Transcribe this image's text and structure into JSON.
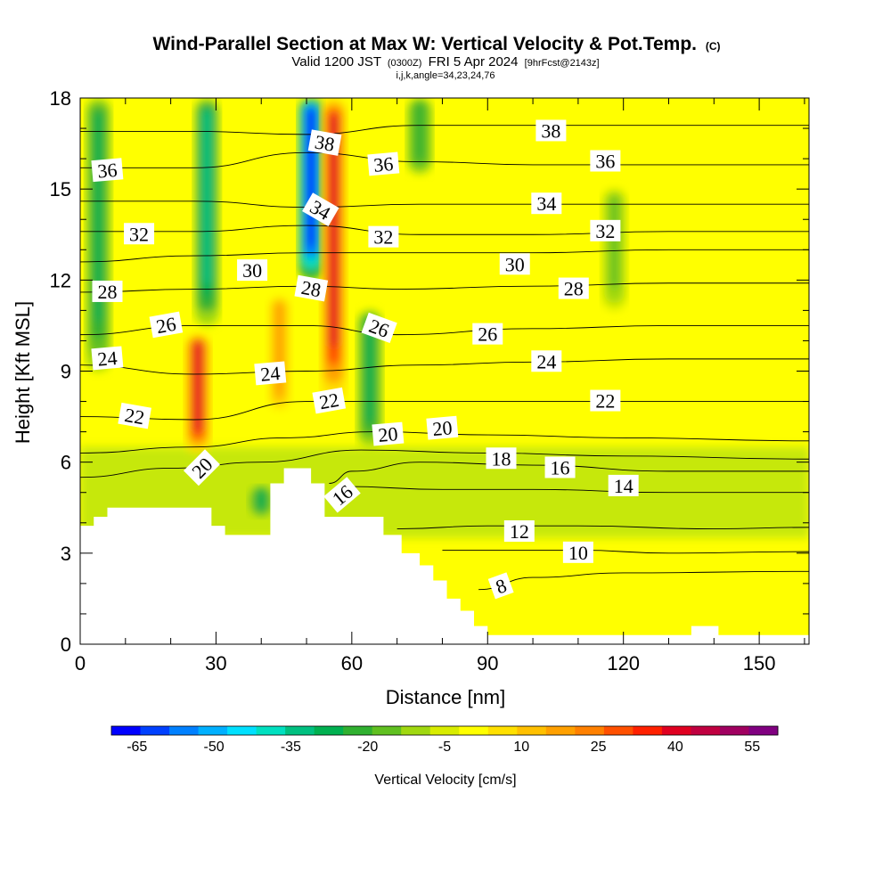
{
  "chart_data": {
    "type": "heatmap",
    "title": {
      "main": "Wind-Parallel Section at Max W: Vertical Velocity & Pot.Temp.",
      "main_suffix": "(C)",
      "valid_prefix": "Valid 1200 JST",
      "valid_utc": "(0300Z)",
      "valid_date": "FRI 5 Apr 2024",
      "forecast": "[9hrFcst@2143z]",
      "indices": "i,j,k,angle=34,23,24,76"
    },
    "xlabel": "Distance [nm]",
    "ylabel": "Height [Kft MSL]",
    "xlim": [
      0,
      161
    ],
    "ylim": [
      0,
      18
    ],
    "x_ticks": [
      0,
      30,
      60,
      90,
      120,
      150
    ],
    "y_ticks": [
      0,
      3,
      6,
      9,
      12,
      15,
      18
    ],
    "colorbar": {
      "label": "Vertical Velocity [cm/s]",
      "tick_labels": [
        "-65",
        "-50",
        "-35",
        "-20",
        "-5",
        "10",
        "25",
        "40",
        "55"
      ],
      "colors": [
        "#0000ff",
        "#0040ff",
        "#0080ff",
        "#00b0ff",
        "#00e0ff",
        "#00e0c0",
        "#00c080",
        "#00b050",
        "#30b030",
        "#60c020",
        "#a0d810",
        "#d8ec00",
        "#ffff00",
        "#ffe000",
        "#ffc000",
        "#ffa000",
        "#ff8000",
        "#ff5000",
        "#ff2000",
        "#e00020",
        "#c00040",
        "#a00060",
        "#800080"
      ]
    },
    "updraft_bands": [
      {
        "x": 26,
        "bottom": 6.3,
        "top": 10.2,
        "peak_cm_s": 45
      },
      {
        "x": 56,
        "bottom": 8.0,
        "top": 18.0,
        "peak_cm_s": 45
      },
      {
        "x": 44,
        "bottom": 7.5,
        "top": 11.5,
        "peak_cm_s": 20
      }
    ],
    "downdraft_bands": [
      {
        "x": 4,
        "bottom": 9.0,
        "top": 18.0,
        "peak_cm_s": -25
      },
      {
        "x": 28,
        "bottom": 10.5,
        "top": 18.0,
        "peak_cm_s": -30
      },
      {
        "x": 51,
        "bottom": 12.0,
        "top": 18.0,
        "peak_cm_s": -65
      },
      {
        "x": 64,
        "bottom": 6.5,
        "top": 11.0,
        "peak_cm_s": -22
      },
      {
        "x": 75,
        "bottom": 15.5,
        "top": 18.0,
        "peak_cm_s": -18
      },
      {
        "x": 40,
        "bottom": 4.2,
        "top": 5.2,
        "peak_cm_s": -20
      },
      {
        "x": 118,
        "bottom": 11.0,
        "top": 15.0,
        "peak_cm_s": -10
      }
    ],
    "terrain": [
      [
        0,
        3.9
      ],
      [
        3,
        3.9
      ],
      [
        3,
        4.2
      ],
      [
        6,
        4.2
      ],
      [
        6,
        4.5
      ],
      [
        29,
        4.5
      ],
      [
        29,
        3.9
      ],
      [
        32,
        3.9
      ],
      [
        32,
        3.6
      ],
      [
        42,
        3.6
      ],
      [
        42,
        5.3
      ],
      [
        45,
        5.3
      ],
      [
        45,
        5.8
      ],
      [
        51,
        5.8
      ],
      [
        51,
        5.3
      ],
      [
        54,
        5.3
      ],
      [
        54,
        4.2
      ],
      [
        67,
        4.2
      ],
      [
        67,
        3.6
      ],
      [
        71,
        3.6
      ],
      [
        71,
        3.0
      ],
      [
        75,
        3.0
      ],
      [
        75,
        2.6
      ],
      [
        78,
        2.6
      ],
      [
        78,
        2.1
      ],
      [
        81,
        2.1
      ],
      [
        81,
        1.5
      ],
      [
        84,
        1.5
      ],
      [
        84,
        1.1
      ],
      [
        87,
        1.1
      ],
      [
        87,
        0.6
      ],
      [
        90,
        0.6
      ],
      [
        90,
        0.3
      ],
      [
        135,
        0.3
      ],
      [
        135,
        0.6
      ],
      [
        141,
        0.6
      ],
      [
        141,
        0.3
      ],
      [
        161,
        0.3
      ],
      [
        161,
        0
      ]
    ],
    "theta_contours": [
      {
        "value": 8,
        "label": "8",
        "points": [
          [
            88,
            1.8
          ],
          [
            100,
            2.2
          ],
          [
            120,
            2.35
          ],
          [
            161,
            2.4
          ]
        ]
      },
      {
        "value": 10,
        "label": "10",
        "points": [
          [
            80,
            3.1
          ],
          [
            95,
            3.1
          ],
          [
            110,
            3.1
          ],
          [
            130,
            3.0
          ],
          [
            161,
            3.05
          ]
        ]
      },
      {
        "value": 12,
        "label": "12",
        "points": [
          [
            70,
            3.8
          ],
          [
            90,
            3.9
          ],
          [
            110,
            3.9
          ],
          [
            140,
            3.8
          ],
          [
            161,
            3.85
          ]
        ]
      },
      {
        "value": 14,
        "label": "14",
        "points": [
          [
            58,
            5.2
          ],
          [
            80,
            5.1
          ],
          [
            100,
            5.1
          ],
          [
            130,
            5.0
          ],
          [
            161,
            5.0
          ]
        ]
      },
      {
        "value": 16,
        "label": "16",
        "points": [
          [
            55,
            5.3
          ],
          [
            60,
            5.7
          ],
          [
            75,
            6.0
          ],
          [
            100,
            5.9
          ],
          [
            130,
            5.7
          ],
          [
            161,
            5.7
          ]
        ]
      },
      {
        "value": 18,
        "label": "18",
        "points": [
          [
            0,
            5.5
          ],
          [
            20,
            5.8
          ],
          [
            40,
            6.0
          ],
          [
            62,
            6.4
          ],
          [
            90,
            6.3
          ],
          [
            120,
            6.2
          ],
          [
            161,
            6.1
          ]
        ]
      },
      {
        "value": 20,
        "label": "20",
        "points": [
          [
            0,
            6.3
          ],
          [
            25,
            6.5
          ],
          [
            45,
            6.8
          ],
          [
            65,
            7.0
          ],
          [
            90,
            6.9
          ],
          [
            120,
            6.8
          ],
          [
            161,
            6.7
          ]
        ]
      },
      {
        "value": 22,
        "label": "22",
        "points": [
          [
            0,
            7.5
          ],
          [
            25,
            7.4
          ],
          [
            50,
            8.0
          ],
          [
            75,
            8.0
          ],
          [
            100,
            8.0
          ],
          [
            130,
            8.0
          ],
          [
            161,
            8.0
          ]
        ]
      },
      {
        "value": 24,
        "label": "24",
        "points": [
          [
            0,
            9.2
          ],
          [
            25,
            8.9
          ],
          [
            50,
            9.0
          ],
          [
            75,
            9.2
          ],
          [
            100,
            9.3
          ],
          [
            130,
            9.4
          ],
          [
            161,
            9.4
          ]
        ]
      },
      {
        "value": 26,
        "label": "26",
        "points": [
          [
            0,
            10.2
          ],
          [
            25,
            10.5
          ],
          [
            50,
            10.5
          ],
          [
            70,
            10.2
          ],
          [
            100,
            10.4
          ],
          [
            130,
            10.5
          ],
          [
            161,
            10.5
          ]
        ]
      },
      {
        "value": 28,
        "label": "28",
        "points": [
          [
            0,
            11.6
          ],
          [
            25,
            11.7
          ],
          [
            50,
            11.8
          ],
          [
            70,
            11.7
          ],
          [
            100,
            11.8
          ],
          [
            130,
            11.9
          ],
          [
            161,
            11.9
          ]
        ]
      },
      {
        "value": 30,
        "label": "30",
        "points": [
          [
            0,
            12.6
          ],
          [
            25,
            12.8
          ],
          [
            50,
            12.9
          ],
          [
            75,
            12.9
          ],
          [
            100,
            12.9
          ],
          [
            130,
            13.0
          ],
          [
            161,
            13.0
          ]
        ]
      },
      {
        "value": 32,
        "label": "32",
        "points": [
          [
            0,
            13.6
          ],
          [
            25,
            13.6
          ],
          [
            50,
            13.8
          ],
          [
            75,
            13.5
          ],
          [
            100,
            13.5
          ],
          [
            130,
            13.6
          ],
          [
            161,
            13.6
          ]
        ]
      },
      {
        "value": 34,
        "label": "34",
        "points": [
          [
            0,
            14.6
          ],
          [
            25,
            14.6
          ],
          [
            50,
            14.4
          ],
          [
            75,
            14.5
          ],
          [
            100,
            14.5
          ],
          [
            130,
            14.5
          ],
          [
            161,
            14.5
          ]
        ]
      },
      {
        "value": 36,
        "label": "36",
        "points": [
          [
            0,
            15.7
          ],
          [
            25,
            15.7
          ],
          [
            50,
            16.2
          ],
          [
            75,
            15.9
          ],
          [
            100,
            15.8
          ],
          [
            130,
            15.8
          ],
          [
            161,
            15.8
          ]
        ]
      },
      {
        "value": 38,
        "label": "38",
        "points": [
          [
            0,
            16.9
          ],
          [
            25,
            16.9
          ],
          [
            50,
            16.8
          ],
          [
            75,
            17.1
          ],
          [
            100,
            17.1
          ],
          [
            130,
            17.1
          ],
          [
            161,
            17.1
          ]
        ]
      }
    ],
    "contour_labels": [
      {
        "text": "36",
        "x": 6,
        "y": 15.6,
        "angle": -5
      },
      {
        "text": "32",
        "x": 13,
        "y": 13.5,
        "angle": 0
      },
      {
        "text": "28",
        "x": 6,
        "y": 11.6,
        "angle": 0
      },
      {
        "text": "26",
        "x": 19,
        "y": 10.5,
        "angle": -10
      },
      {
        "text": "24",
        "x": 6,
        "y": 9.4,
        "angle": -5
      },
      {
        "text": "22",
        "x": 12,
        "y": 7.5,
        "angle": 10
      },
      {
        "text": "20",
        "x": 27,
        "y": 5.8,
        "angle": -45
      },
      {
        "text": "30",
        "x": 38,
        "y": 12.3,
        "angle": 0
      },
      {
        "text": "24",
        "x": 42,
        "y": 8.9,
        "angle": -5
      },
      {
        "text": "28",
        "x": 51,
        "y": 11.7,
        "angle": 10
      },
      {
        "text": "34",
        "x": 53,
        "y": 14.3,
        "angle": 30
      },
      {
        "text": "38",
        "x": 54,
        "y": 16.5,
        "angle": 10
      },
      {
        "text": "22",
        "x": 55,
        "y": 8.0,
        "angle": -10
      },
      {
        "text": "16",
        "x": 58,
        "y": 4.9,
        "angle": -40
      },
      {
        "text": "36",
        "x": 67,
        "y": 15.8,
        "angle": -5
      },
      {
        "text": "32",
        "x": 67,
        "y": 13.4,
        "angle": 0
      },
      {
        "text": "26",
        "x": 66,
        "y": 10.4,
        "angle": 20
      },
      {
        "text": "20",
        "x": 68,
        "y": 6.9,
        "angle": -5
      },
      {
        "text": "20",
        "x": 80,
        "y": 7.1,
        "angle": -5
      },
      {
        "text": "26",
        "x": 90,
        "y": 10.2,
        "angle": 0
      },
      {
        "text": "30",
        "x": 96,
        "y": 12.5,
        "angle": 0
      },
      {
        "text": "18",
        "x": 93,
        "y": 6.1,
        "angle": 0
      },
      {
        "text": "12",
        "x": 97,
        "y": 3.7,
        "angle": 0
      },
      {
        "text": "8",
        "x": 93,
        "y": 1.9,
        "angle": -20
      },
      {
        "text": "38",
        "x": 104,
        "y": 16.9,
        "angle": 0
      },
      {
        "text": "34",
        "x": 103,
        "y": 14.5,
        "angle": 0
      },
      {
        "text": "24",
        "x": 103,
        "y": 9.3,
        "angle": 0
      },
      {
        "text": "16",
        "x": 106,
        "y": 5.8,
        "angle": 0
      },
      {
        "text": "10",
        "x": 110,
        "y": 3.0,
        "angle": 0
      },
      {
        "text": "28",
        "x": 109,
        "y": 11.7,
        "angle": 0
      },
      {
        "text": "36",
        "x": 116,
        "y": 15.9,
        "angle": 0
      },
      {
        "text": "32",
        "x": 116,
        "y": 13.6,
        "angle": 0
      },
      {
        "text": "22",
        "x": 116,
        "y": 8.0,
        "angle": 0
      },
      {
        "text": "14",
        "x": 120,
        "y": 5.2,
        "angle": 0
      }
    ]
  }
}
